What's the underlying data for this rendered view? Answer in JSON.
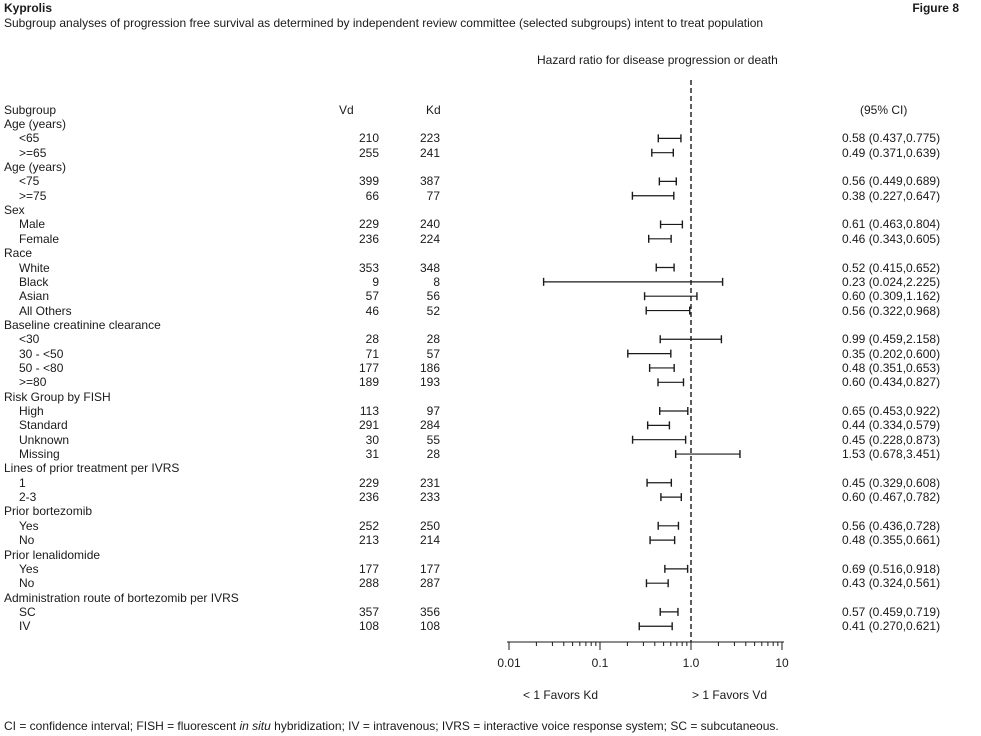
{
  "header": {
    "brand": "Kyprolis",
    "figure_label": "Figure 8",
    "subtitle": "Subgroup analyses of progression free survival as determined by independent review committee (selected subgroups) intent to treat population"
  },
  "columns": {
    "subgroup": "Subgroup",
    "vd": "Vd",
    "kd": "Kd",
    "ci": "(95% CI)"
  },
  "favors": {
    "left": "< 1 Favors Kd",
    "right": "> 1 Favors Vd"
  },
  "footnote": {
    "part1": "CI = confidence interval; FISH = fluorescent ",
    "italic": "in situ",
    "part2": " hybridization; IV = intravenous; IVRS = interactive voice response system; SC = subcutaneous."
  },
  "chart_data": {
    "type": "forest",
    "title": "Hazard ratio for disease progression or death",
    "x_scale": "log",
    "xlim": [
      0.01,
      10
    ],
    "x_ticks": [
      0.01,
      0.1,
      1.0,
      10
    ],
    "x_tick_labels": [
      "0.01",
      "0.1",
      "1.0",
      "10"
    ],
    "reference_line": 1.0,
    "rows": [
      {
        "label": "Age (years)",
        "header": true
      },
      {
        "label": "<65",
        "vd": "210",
        "kd": "223",
        "hr": 0.58,
        "lo": 0.437,
        "hi": 0.775,
        "ci_text": "0.58 (0.437,0.775)"
      },
      {
        "label": ">=65",
        "vd": "255",
        "kd": "241",
        "hr": 0.49,
        "lo": 0.371,
        "hi": 0.639,
        "ci_text": "0.49 (0.371,0.639)"
      },
      {
        "label": "Age (years)",
        "header": true
      },
      {
        "label": "<75",
        "vd": "399",
        "kd": "387",
        "hr": 0.56,
        "lo": 0.449,
        "hi": 0.689,
        "ci_text": "0.56 (0.449,0.689)"
      },
      {
        "label": ">=75",
        "vd": "66",
        "kd": "77",
        "hr": 0.38,
        "lo": 0.227,
        "hi": 0.647,
        "ci_text": "0.38 (0.227,0.647)"
      },
      {
        "label": "Sex",
        "header": true
      },
      {
        "label": "Male",
        "vd": "229",
        "kd": "240",
        "hr": 0.61,
        "lo": 0.463,
        "hi": 0.804,
        "ci_text": "0.61 (0.463,0.804)"
      },
      {
        "label": "Female",
        "vd": "236",
        "kd": "224",
        "hr": 0.46,
        "lo": 0.343,
        "hi": 0.605,
        "ci_text": "0.46 (0.343,0.605)"
      },
      {
        "label": "Race",
        "header": true
      },
      {
        "label": "White",
        "vd": "353",
        "kd": "348",
        "hr": 0.52,
        "lo": 0.415,
        "hi": 0.652,
        "ci_text": "0.52 (0.415,0.652)"
      },
      {
        "label": "Black",
        "vd": "9",
        "kd": "8",
        "hr": 0.23,
        "lo": 0.024,
        "hi": 2.225,
        "ci_text": "0.23 (0.024,2.225)"
      },
      {
        "label": "Asian",
        "vd": "57",
        "kd": "56",
        "hr": 0.6,
        "lo": 0.309,
        "hi": 1.162,
        "ci_text": "0.60 (0.309,1.162)"
      },
      {
        "label": "All Others",
        "vd": "46",
        "kd": "52",
        "hr": 0.56,
        "lo": 0.322,
        "hi": 0.968,
        "ci_text": "0.56 (0.322,0.968)"
      },
      {
        "label": "Baseline creatinine clearance",
        "header": true
      },
      {
        "label": "<30",
        "vd": "28",
        "kd": "28",
        "hr": 0.99,
        "lo": 0.459,
        "hi": 2.158,
        "ci_text": "0.99 (0.459,2.158)"
      },
      {
        "label": "30 - <50",
        "vd": "71",
        "kd": "57",
        "hr": 0.35,
        "lo": 0.202,
        "hi": 0.6,
        "ci_text": "0.35 (0.202,0.600)"
      },
      {
        "label": "50 - <80",
        "vd": "177",
        "kd": "186",
        "hr": 0.48,
        "lo": 0.351,
        "hi": 0.653,
        "ci_text": "0.48 (0.351,0.653)"
      },
      {
        "label": ">=80",
        "vd": "189",
        "kd": "193",
        "hr": 0.6,
        "lo": 0.434,
        "hi": 0.827,
        "ci_text": "0.60 (0.434,0.827)"
      },
      {
        "label": "Risk Group by FISH",
        "header": true
      },
      {
        "label": "High",
        "vd": "113",
        "kd": "97",
        "hr": 0.65,
        "lo": 0.453,
        "hi": 0.922,
        "ci_text": "0.65 (0.453,0.922)"
      },
      {
        "label": "Standard",
        "vd": "291",
        "kd": "284",
        "hr": 0.44,
        "lo": 0.334,
        "hi": 0.579,
        "ci_text": "0.44 (0.334,0.579)"
      },
      {
        "label": "Unknown",
        "vd": "30",
        "kd": "55",
        "hr": 0.45,
        "lo": 0.228,
        "hi": 0.873,
        "ci_text": "0.45 (0.228,0.873)"
      },
      {
        "label": "Missing",
        "vd": "31",
        "kd": "28",
        "hr": 1.53,
        "lo": 0.678,
        "hi": 3.451,
        "ci_text": "1.53 (0.678,3.451)"
      },
      {
        "label": "Lines of prior treatment per IVRS",
        "header": true
      },
      {
        "label": "1",
        "vd": "229",
        "kd": "231",
        "hr": 0.45,
        "lo": 0.329,
        "hi": 0.608,
        "ci_text": "0.45 (0.329,0.608)"
      },
      {
        "label": "2-3",
        "vd": "236",
        "kd": "233",
        "hr": 0.6,
        "lo": 0.467,
        "hi": 0.782,
        "ci_text": "0.60 (0.467,0.782)"
      },
      {
        "label": "Prior bortezomib",
        "header": true
      },
      {
        "label": "Yes",
        "vd": "252",
        "kd": "250",
        "hr": 0.56,
        "lo": 0.436,
        "hi": 0.728,
        "ci_text": "0.56 (0.436,0.728)"
      },
      {
        "label": "No",
        "vd": "213",
        "kd": "214",
        "hr": 0.48,
        "lo": 0.355,
        "hi": 0.661,
        "ci_text": "0.48 (0.355,0.661)"
      },
      {
        "label": "Prior lenalidomide",
        "header": true
      },
      {
        "label": "Yes",
        "vd": "177",
        "kd": "177",
        "hr": 0.69,
        "lo": 0.516,
        "hi": 0.918,
        "ci_text": "0.69 (0.516,0.918)"
      },
      {
        "label": "No",
        "vd": "288",
        "kd": "287",
        "hr": 0.43,
        "lo": 0.324,
        "hi": 0.561,
        "ci_text": "0.43 (0.324,0.561)"
      },
      {
        "label": "Administration route of bortezomib per IVRS",
        "header": true
      },
      {
        "label": "SC",
        "vd": "357",
        "kd": "356",
        "hr": 0.57,
        "lo": 0.459,
        "hi": 0.719,
        "ci_text": "0.57 (0.459,0.719)"
      },
      {
        "label": "IV",
        "vd": "108",
        "kd": "108",
        "hr": 0.41,
        "lo": 0.27,
        "hi": 0.621,
        "ci_text": "0.41 (0.270,0.621)"
      }
    ]
  }
}
